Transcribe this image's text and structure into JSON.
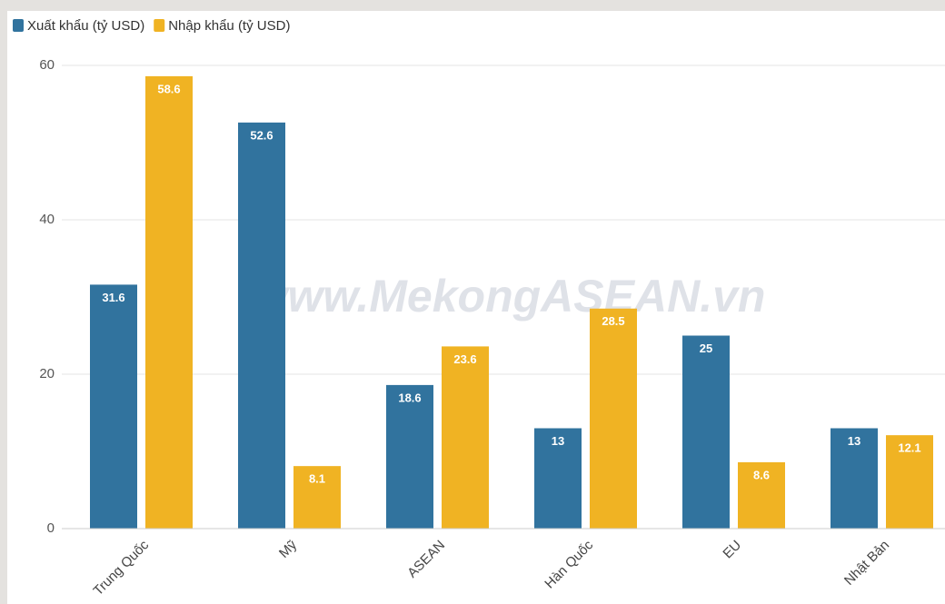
{
  "chart_data": {
    "type": "bar",
    "watermark": "www.MekongASEAN.vn",
    "categories": [
      "Trung Quốc",
      "Mỹ",
      "ASEAN",
      "Hàn Quốc",
      "EU",
      "Nhật Bản"
    ],
    "series": [
      {
        "name": "Xuất khẩu (tỷ USD)",
        "color": "#31739e",
        "values": [
          31.6,
          52.6,
          18.6,
          13,
          25,
          13
        ]
      },
      {
        "name": "Nhập khẩu (tỷ USD)",
        "color": "#f0b323",
        "values": [
          58.6,
          8.1,
          23.6,
          28.5,
          8.6,
          12.1
        ]
      }
    ],
    "ylim": [
      0,
      60
    ],
    "yticks": [
      0,
      20,
      40,
      60
    ],
    "grid": true,
    "legend": "top-left"
  }
}
